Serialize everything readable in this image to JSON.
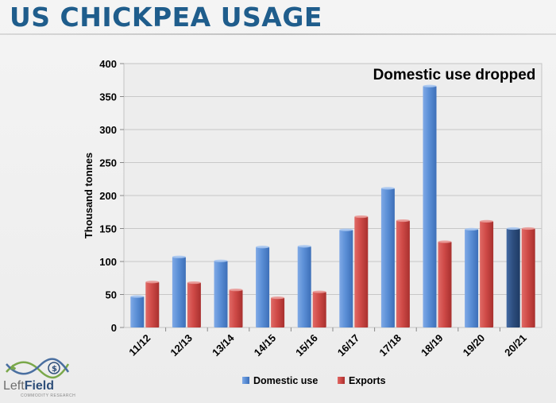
{
  "slide": {
    "title": "US CHICKPEA USAGE"
  },
  "logo": {
    "brand_left": "Left",
    "brand_right": "Field",
    "tagline": "COMMODITY RESEARCH"
  },
  "chart_data": {
    "type": "bar",
    "title": "",
    "xlabel": "",
    "ylabel": "Thousand tonnes",
    "ylim": [
      0,
      400
    ],
    "yticks": [
      0,
      50,
      100,
      150,
      200,
      250,
      300,
      350,
      400
    ],
    "categories": [
      "11/12",
      "12/13",
      "13/14",
      "14/15",
      "15/16",
      "16/17",
      "17/18",
      "18/19",
      "19/20",
      "20/21"
    ],
    "series": [
      {
        "name": "Domestic use",
        "color": "#5b8fd6",
        "highlight_color": "#2e4f80",
        "highlight_index": 9,
        "values": [
          47,
          107,
          101,
          122,
          123,
          148,
          211,
          366,
          149,
          150
        ]
      },
      {
        "name": "Exports",
        "color": "#cf4a47",
        "values": [
          69,
          68,
          57,
          45,
          54,
          168,
          162,
          130,
          161,
          150
        ]
      }
    ],
    "grid": true,
    "legend_position": "bottom",
    "annotation": "Domestic use dropped"
  }
}
